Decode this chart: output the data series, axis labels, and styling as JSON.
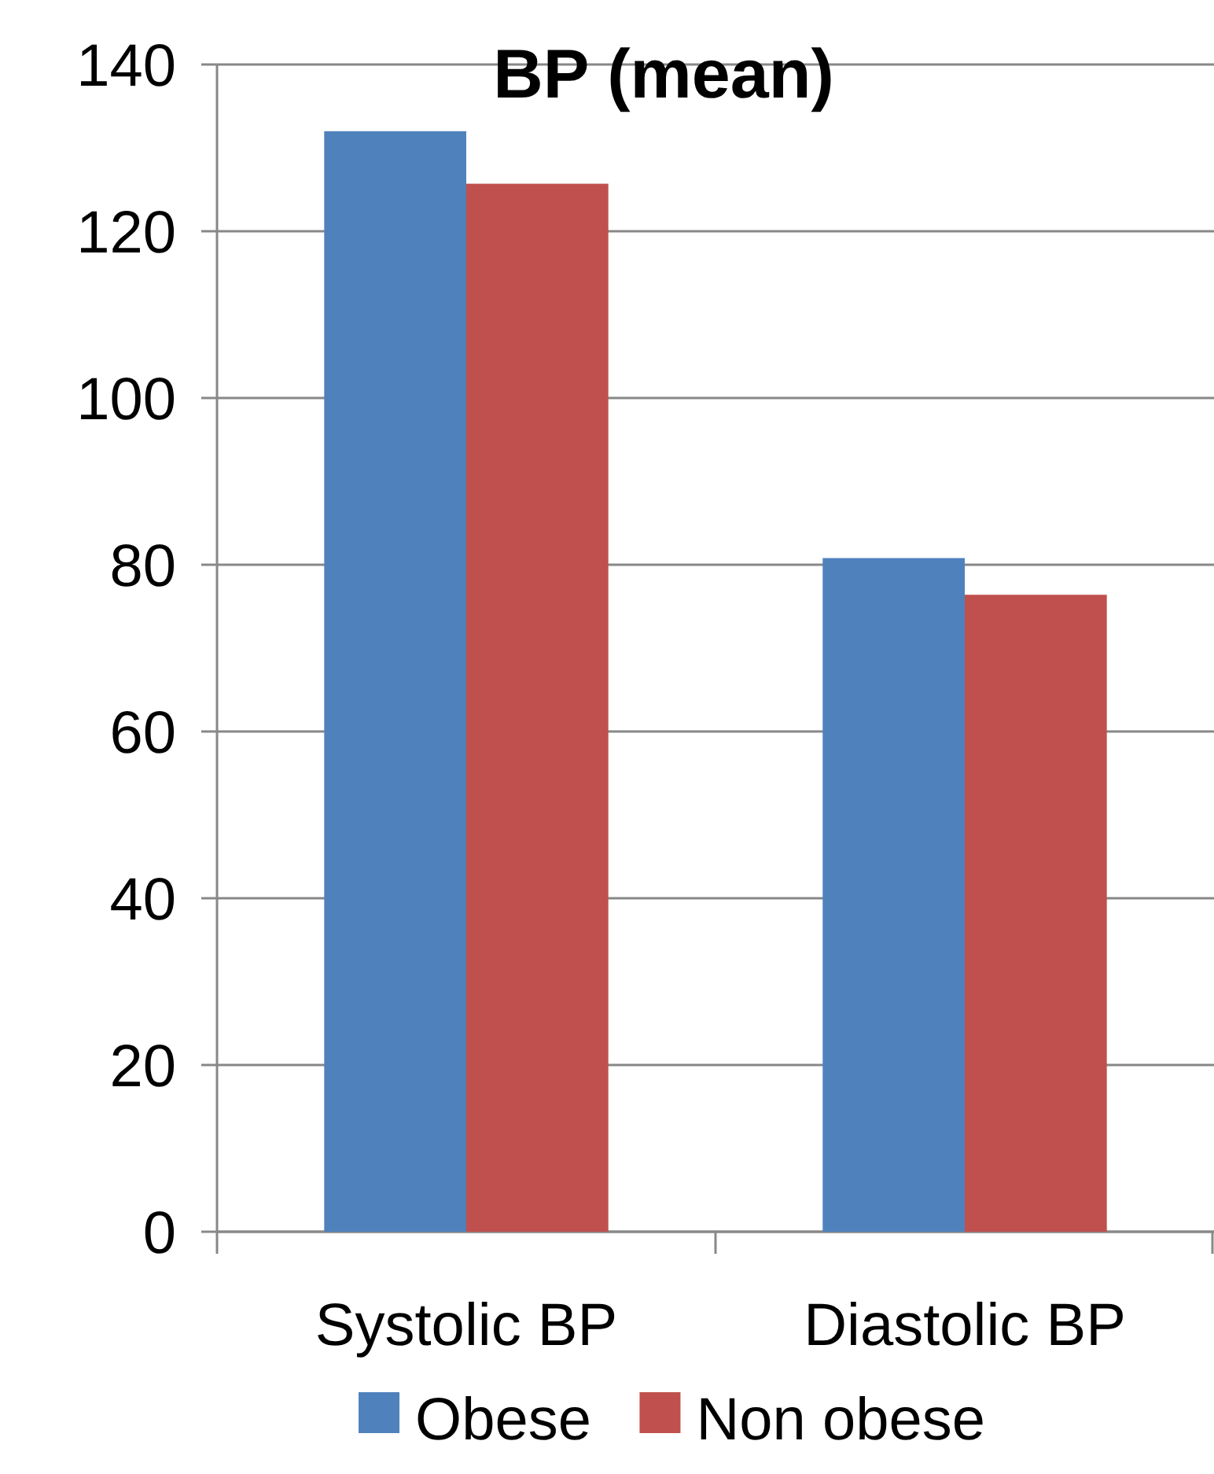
{
  "chart_data": {
    "type": "bar",
    "title": "BP (mean)",
    "categories": [
      "Systolic BP",
      "Diastolic BP"
    ],
    "series": [
      {
        "name": "Obese",
        "color": "#4f81bd",
        "values": [
          132,
          80.8
        ]
      },
      {
        "name": "Non obese",
        "color": "#c0504d",
        "values": [
          125.7,
          76.4
        ]
      }
    ],
    "ylim": [
      0,
      140
    ],
    "yticks": [
      0,
      20,
      40,
      60,
      80,
      100,
      120,
      140
    ],
    "grid": "y",
    "legend": "bottom"
  }
}
